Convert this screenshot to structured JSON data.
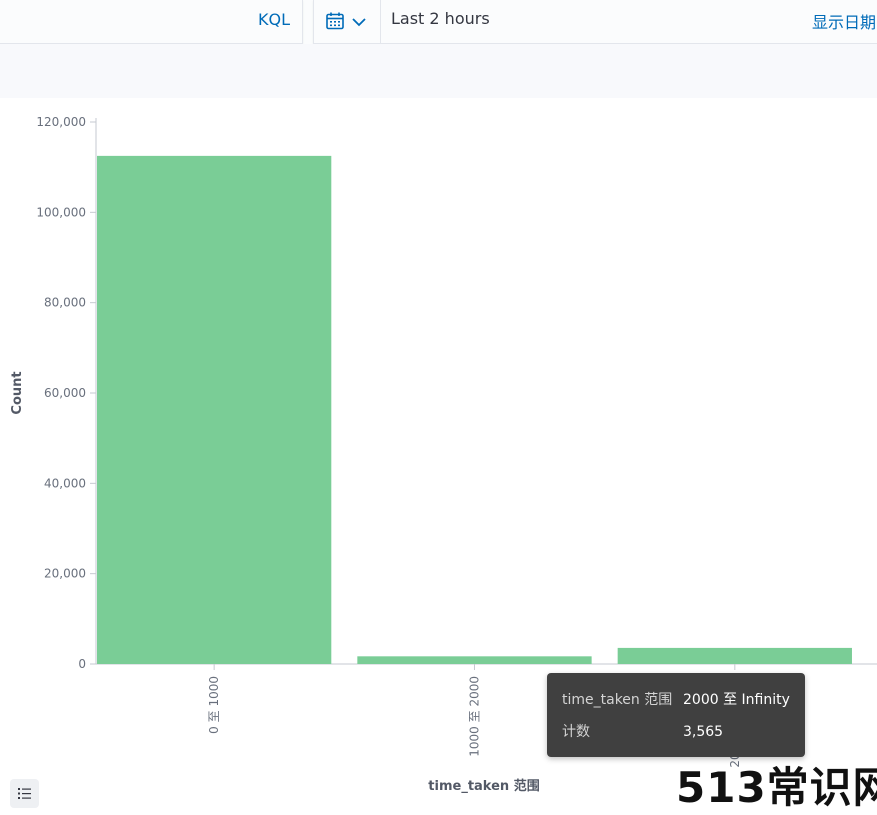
{
  "toolbar": {
    "language_label": "KQL",
    "time_range": "Last 2 hours",
    "show_dates_label": "显示日期"
  },
  "chart_data": {
    "type": "bar",
    "xlabel": "time_taken 范围",
    "ylabel": "Count",
    "categories": [
      "0 至 1000",
      "1000 至 2000",
      "2000 至 Infinity"
    ],
    "values": [
      112500,
      1700,
      3565
    ],
    "ylim": [
      0,
      120000
    ],
    "yticks": [
      0,
      20000,
      40000,
      60000,
      80000,
      100000,
      120000
    ],
    "ytick_labels": [
      "0",
      "20,000",
      "40,000",
      "60,000",
      "80,000",
      "100,000",
      "120,000"
    ],
    "bar_color": "#7acd96",
    "grid": false
  },
  "tooltip": {
    "rows": [
      {
        "key": "time_taken 范围",
        "value": "2000 至 Infinity"
      },
      {
        "key": "计数",
        "value": "3,565"
      }
    ]
  },
  "watermark": "513常识网",
  "icons": {
    "date_picker": "calendar-icon",
    "date_toggle": "chevron-down-icon",
    "legend": "list-icon"
  }
}
